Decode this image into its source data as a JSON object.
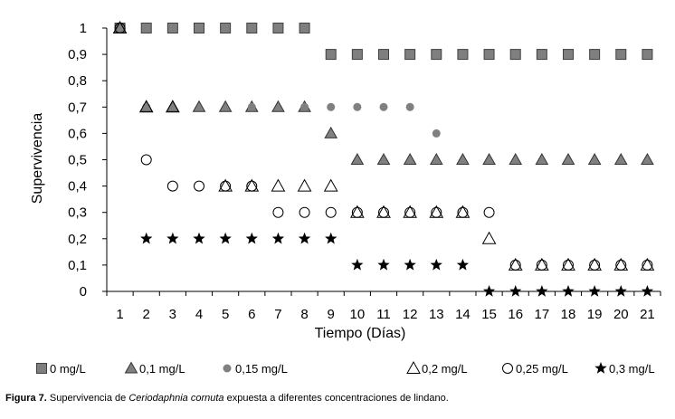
{
  "caption": {
    "label": "Figura 7.",
    "text_before": " Supervivencia de ",
    "species": "Ceriodaphnia cornuta",
    "text_after": " expuesta a diferentes concentraciones de lindano."
  },
  "chart_data": {
    "type": "scatter",
    "title": "",
    "xlabel": "Tiempo (Días)",
    "ylabel": "Supervivencia",
    "x": [
      1,
      2,
      3,
      4,
      5,
      6,
      7,
      8,
      9,
      10,
      11,
      12,
      13,
      14,
      15,
      16,
      17,
      18,
      19,
      20,
      21
    ],
    "xlim": [
      0.5,
      21.5
    ],
    "ylim": [
      0,
      1
    ],
    "yticks": [
      0,
      0.1,
      0.2,
      0.3,
      0.4,
      0.5,
      0.6,
      0.7,
      0.8,
      0.9,
      1
    ],
    "ytick_labels": [
      "0",
      "0,1",
      "0,2",
      "0,3",
      "0,4",
      "0,5",
      "0,6",
      "0,7",
      "0,8",
      "0,9",
      "1"
    ],
    "xtick_labels": [
      "1",
      "2",
      "3",
      "4",
      "5",
      "6",
      "7",
      "8",
      "9",
      "10",
      "11",
      "12",
      "13",
      "14",
      "15",
      "16",
      "17",
      "18",
      "19",
      "20",
      "21"
    ],
    "grid": false,
    "legend_position": "bottom",
    "series": [
      {
        "name": "0 mg/L",
        "marker": "square",
        "color": "#7f7f7f",
        "x": [
          1,
          2,
          3,
          4,
          5,
          6,
          7,
          8,
          9,
          10,
          11,
          12,
          13,
          14,
          15,
          16,
          17,
          18,
          19,
          20,
          21
        ],
        "y": [
          1,
          1,
          1,
          1,
          1,
          1,
          1,
          1,
          0.9,
          0.9,
          0.9,
          0.9,
          0.9,
          0.9,
          0.9,
          0.9,
          0.9,
          0.9,
          0.9,
          0.9,
          0.9
        ]
      },
      {
        "name": "0,1  mg/L",
        "marker": "triangle-filled",
        "color": "#808080",
        "x": [
          1,
          2,
          3,
          4,
          5,
          6,
          7,
          8,
          9,
          10,
          11,
          12,
          13,
          14,
          15,
          16,
          17,
          18,
          19,
          20,
          21
        ],
        "y": [
          1,
          0.7,
          0.7,
          0.7,
          0.7,
          0.7,
          0.7,
          0.7,
          0.6,
          0.5,
          0.5,
          0.5,
          0.5,
          0.5,
          0.5,
          0.5,
          0.5,
          0.5,
          0.5,
          0.5,
          0.5
        ]
      },
      {
        "name": "0,15 mg/L",
        "marker": "dot",
        "color": "#808080",
        "x": [
          2,
          6,
          8,
          9,
          10,
          11,
          12,
          13
        ],
        "y": [
          0.7,
          0.7,
          0.7,
          0.7,
          0.7,
          0.7,
          0.7,
          0.6
        ]
      },
      {
        "name": "0,2 mg/L",
        "marker": "triangle-open",
        "color": "#000000",
        "x": [
          1,
          2,
          3,
          5,
          6,
          7,
          8,
          9,
          10,
          11,
          12,
          13,
          14,
          15,
          16,
          17,
          18,
          19,
          20,
          21
        ],
        "y": [
          1,
          0.7,
          0.7,
          0.4,
          0.4,
          0.4,
          0.4,
          0.4,
          0.3,
          0.3,
          0.3,
          0.3,
          0.3,
          0.2,
          0.1,
          0.1,
          0.1,
          0.1,
          0.1,
          0.1
        ]
      },
      {
        "name": "0,25 mg/L",
        "marker": "circle-open",
        "color": "#000000",
        "x": [
          1,
          2,
          3,
          4,
          5,
          6,
          7,
          8,
          9,
          10,
          11,
          12,
          13,
          14,
          15,
          16,
          17,
          18,
          19,
          20,
          21
        ],
        "y": [
          1,
          0.5,
          0.4,
          0.4,
          0.4,
          0.4,
          0.3,
          0.3,
          0.3,
          0.3,
          0.3,
          0.3,
          0.3,
          0.3,
          0.3,
          0.1,
          0.1,
          0.1,
          0.1,
          0.1,
          0.1
        ]
      },
      {
        "name": "0,3 mg/L",
        "marker": "star",
        "color": "#000000",
        "x": [
          2,
          3,
          4,
          5,
          6,
          7,
          8,
          9,
          10,
          11,
          12,
          13,
          14,
          15,
          16,
          17,
          18,
          19,
          20,
          21
        ],
        "y": [
          0.2,
          0.2,
          0.2,
          0.2,
          0.2,
          0.2,
          0.2,
          0.2,
          0.1,
          0.1,
          0.1,
          0.1,
          0.1,
          0,
          0,
          0,
          0,
          0,
          0,
          0
        ]
      }
    ]
  }
}
